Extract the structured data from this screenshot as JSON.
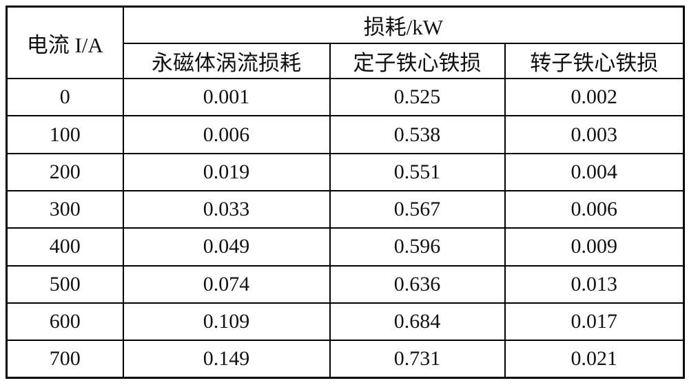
{
  "table": {
    "header": {
      "current_label": "电流 I/A",
      "loss_group_label": "损耗/kW",
      "sub_columns": [
        "永磁体涡流损耗",
        "定子铁心铁损",
        "转子铁心铁损"
      ]
    },
    "rows": [
      [
        "0",
        "0.001",
        "0.525",
        "0.002"
      ],
      [
        "100",
        "0.006",
        "0.538",
        "0.003"
      ],
      [
        "200",
        "0.019",
        "0.551",
        "0.004"
      ],
      [
        "300",
        "0.033",
        "0.567",
        "0.006"
      ],
      [
        "400",
        "0.049",
        "0.596",
        "0.009"
      ],
      [
        "500",
        "0.074",
        "0.636",
        "0.013"
      ],
      [
        "600",
        "0.109",
        "0.684",
        "0.017"
      ],
      [
        "700",
        "0.149",
        "0.731",
        "0.021"
      ]
    ]
  },
  "chart_data": {
    "type": "table",
    "title": "损耗/kW",
    "xlabel": "电流 I/A",
    "categories": [
      0,
      100,
      200,
      300,
      400,
      500,
      600,
      700
    ],
    "series": [
      {
        "name": "永磁体涡流损耗",
        "values": [
          0.001,
          0.006,
          0.019,
          0.033,
          0.049,
          0.074,
          0.109,
          0.149
        ]
      },
      {
        "name": "定子铁心铁损",
        "values": [
          0.525,
          0.538,
          0.551,
          0.567,
          0.596,
          0.636,
          0.684,
          0.731
        ]
      },
      {
        "name": "转子铁心铁损",
        "values": [
          0.002,
          0.003,
          0.004,
          0.006,
          0.009,
          0.013,
          0.017,
          0.021
        ]
      }
    ],
    "colors": {
      "border": "#000000",
      "text": "#111111",
      "background": "#ffffff"
    }
  }
}
